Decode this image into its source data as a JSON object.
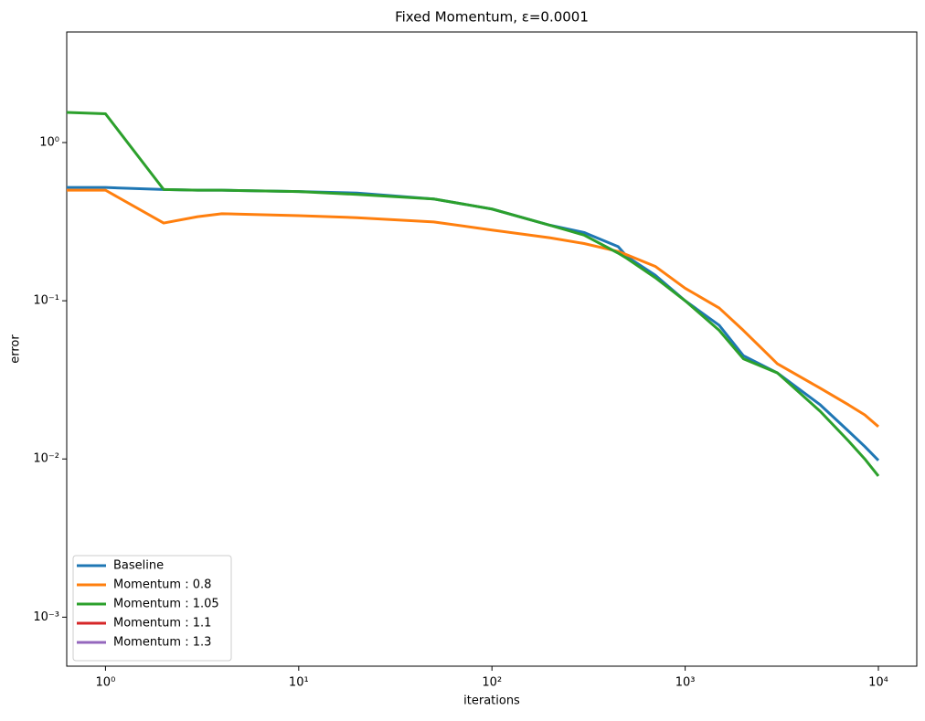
{
  "chart_data": {
    "type": "line",
    "title": "Fixed Momentum, ε=0.0001",
    "xlabel": "iterations",
    "ylabel": "error",
    "x": [
      0.63,
      1,
      2,
      3,
      4,
      10,
      20,
      50,
      100,
      200,
      300,
      450,
      500,
      700,
      1000,
      1500,
      2000,
      3000,
      5000,
      7000,
      8500,
      10000
    ],
    "series": [
      {
        "name": "Baseline",
        "color": "#1f77b4",
        "values": [
          0.52,
          0.52,
          0.505,
          0.5,
          0.5,
          0.49,
          0.48,
          0.44,
          0.38,
          0.3,
          0.27,
          0.22,
          0.19,
          0.145,
          0.1,
          0.07,
          0.045,
          0.035,
          0.022,
          0.015,
          0.012,
          0.0098
        ]
      },
      {
        "name": "Momentum : 0.8",
        "color": "#ff7f0e",
        "values": [
          0.5,
          0.5,
          0.31,
          0.34,
          0.355,
          0.345,
          0.335,
          0.315,
          0.28,
          0.25,
          0.23,
          0.205,
          0.195,
          0.165,
          0.12,
          0.09,
          0.065,
          0.04,
          0.028,
          0.022,
          0.019,
          0.016
        ]
      },
      {
        "name": "Momentum : 1.05",
        "color": "#2ca02c",
        "values": [
          1.55,
          1.52,
          0.505,
          0.5,
          0.5,
          0.49,
          0.47,
          0.44,
          0.38,
          0.3,
          0.26,
          0.2,
          0.185,
          0.14,
          0.1,
          0.065,
          0.043,
          0.035,
          0.02,
          0.013,
          0.01,
          0.0078
        ]
      },
      {
        "name": "Momentum : 1.1",
        "color": "#d62728",
        "values": [
          null,
          null,
          null,
          null,
          null,
          null,
          null,
          null,
          null,
          null,
          null,
          null,
          null,
          null,
          null,
          null,
          null,
          null,
          null,
          null,
          null,
          null
        ]
      },
      {
        "name": "Momentum : 1.3",
        "color": "#9467bd",
        "values": [
          null,
          null,
          null,
          null,
          null,
          null,
          null,
          null,
          null,
          null,
          null,
          null,
          null,
          null,
          null,
          null,
          null,
          null,
          null,
          null,
          null,
          null
        ]
      }
    ],
    "xscale": "log",
    "yscale": "log",
    "xlim": [
      0.63,
      15800
    ],
    "ylim": [
      0.00049,
      5.0
    ],
    "xticks": [
      {
        "value": 1,
        "label": "10⁰"
      },
      {
        "value": 10,
        "label": "10¹"
      },
      {
        "value": 100,
        "label": "10²"
      },
      {
        "value": 1000,
        "label": "10³"
      },
      {
        "value": 10000,
        "label": "10⁴"
      }
    ],
    "yticks": [
      {
        "value": 0.001,
        "label": "10⁻³"
      },
      {
        "value": 0.01,
        "label": "10⁻²"
      },
      {
        "value": 0.1,
        "label": "10⁻¹"
      },
      {
        "value": 1,
        "label": "10⁰"
      }
    ],
    "legend": "lower left",
    "grid": false
  }
}
